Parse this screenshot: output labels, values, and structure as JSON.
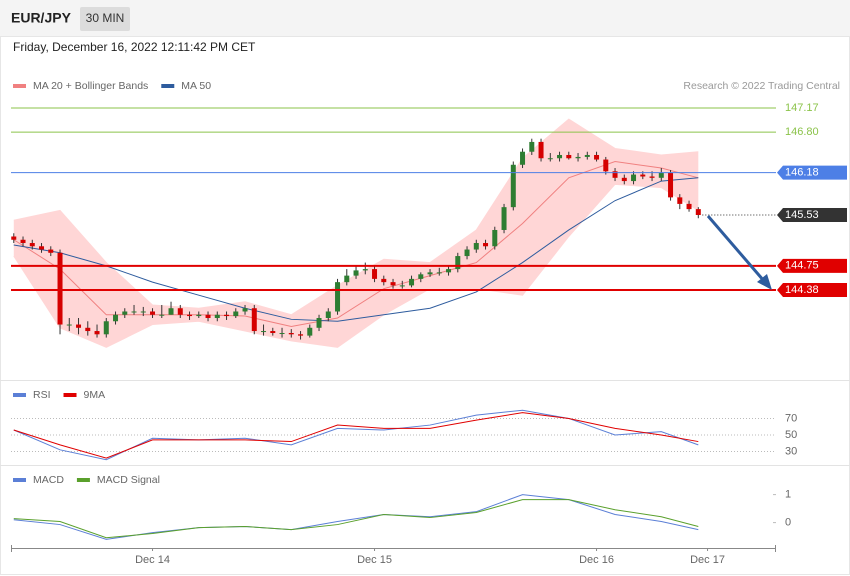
{
  "header": {
    "symbol": "EUR/JPY",
    "interval": "30 MIN",
    "timestamp": "Friday, December 16, 2022 12:11:42 PM CET"
  },
  "chart_data": [
    {
      "type": "candlestick",
      "credit": "Research © 2022 Trading Central",
      "legend": "top-left",
      "up_color": "#2e7d32",
      "down_color": "#d50000",
      "xlim": [
        -0.3,
        82.4
      ],
      "ylim": [
        143.03,
        147.83
      ],
      "x": [
        0,
        1,
        2,
        3,
        4,
        5,
        6,
        7,
        8,
        9,
        10,
        11,
        12,
        13,
        14,
        15,
        16,
        17,
        18,
        19,
        20,
        21,
        22,
        23,
        24,
        25,
        26,
        27,
        28,
        29,
        30,
        31,
        32,
        33,
        34,
        35,
        36,
        37,
        38,
        39,
        40,
        41,
        42,
        43,
        44,
        45,
        46,
        47,
        48,
        49,
        50,
        51,
        52,
        53,
        54,
        55,
        56,
        57,
        58,
        59,
        60,
        61,
        62,
        63,
        64,
        65,
        66,
        67,
        68,
        69,
        70,
        71,
        72,
        73,
        74
      ],
      "open": [
        145.2,
        145.15,
        145.1,
        145.05,
        145.0,
        144.95,
        143.85,
        143.85,
        143.8,
        143.75,
        143.7,
        143.9,
        144.0,
        144.05,
        144.05,
        144.05,
        144.0,
        144.0,
        144.1,
        144.0,
        143.98,
        144.0,
        143.95,
        144.0,
        143.98,
        144.05,
        144.1,
        143.75,
        143.75,
        143.72,
        143.72,
        143.7,
        143.68,
        143.8,
        143.95,
        144.05,
        144.5,
        144.6,
        144.68,
        144.7,
        144.55,
        144.5,
        144.45,
        144.45,
        144.55,
        144.62,
        144.65,
        144.65,
        144.7,
        144.9,
        145.0,
        145.1,
        145.05,
        145.3,
        145.65,
        146.3,
        146.5,
        146.65,
        146.4,
        146.4,
        146.45,
        146.4,
        146.42,
        146.45,
        146.38,
        146.2,
        146.1,
        146.05,
        146.15,
        146.12,
        146.1,
        146.18,
        145.8,
        145.7,
        145.62
      ],
      "high": [
        145.25,
        145.2,
        145.15,
        145.1,
        145.05,
        145.0,
        143.95,
        143.95,
        143.9,
        143.85,
        143.95,
        144.05,
        144.1,
        144.15,
        144.12,
        144.1,
        144.15,
        144.2,
        144.15,
        144.05,
        144.05,
        144.05,
        144.05,
        144.05,
        144.1,
        144.15,
        144.15,
        143.85,
        143.8,
        143.8,
        143.78,
        143.75,
        143.85,
        144.0,
        144.1,
        144.55,
        144.7,
        144.75,
        144.8,
        144.75,
        144.6,
        144.55,
        144.52,
        144.6,
        144.65,
        144.7,
        144.72,
        144.75,
        144.95,
        145.05,
        145.15,
        145.15,
        145.35,
        145.7,
        146.35,
        146.55,
        146.7,
        146.7,
        146.48,
        146.5,
        146.5,
        146.48,
        146.5,
        146.5,
        146.42,
        146.25,
        146.15,
        146.2,
        146.2,
        146.2,
        146.25,
        146.22,
        145.85,
        145.75,
        145.65
      ],
      "low": [
        145.1,
        145.05,
        145.0,
        144.95,
        144.9,
        143.7,
        143.75,
        143.7,
        143.68,
        143.65,
        143.65,
        143.85,
        143.95,
        144.0,
        143.98,
        143.95,
        143.95,
        144.0,
        143.95,
        143.92,
        143.95,
        143.9,
        143.9,
        143.92,
        143.95,
        144.0,
        143.7,
        143.68,
        143.68,
        143.65,
        143.65,
        143.62,
        143.65,
        143.75,
        143.9,
        144.0,
        144.45,
        144.55,
        144.62,
        144.5,
        144.45,
        144.4,
        144.4,
        144.42,
        144.5,
        144.58,
        144.6,
        144.6,
        144.65,
        144.85,
        144.95,
        145.0,
        145.0,
        145.25,
        145.6,
        146.25,
        146.45,
        146.35,
        146.35,
        146.35,
        146.38,
        146.35,
        146.38,
        146.35,
        146.15,
        146.05,
        146.0,
        146.0,
        146.08,
        146.05,
        146.05,
        145.75,
        145.62,
        145.58,
        145.48
      ],
      "close": [
        145.15,
        145.1,
        145.05,
        145.0,
        144.95,
        143.85,
        143.85,
        143.8,
        143.75,
        143.7,
        143.9,
        144.0,
        144.05,
        144.05,
        144.05,
        144.0,
        144.0,
        144.1,
        144.0,
        143.98,
        144.0,
        143.95,
        144.0,
        143.98,
        144.05,
        144.1,
        143.75,
        143.75,
        143.72,
        143.72,
        143.7,
        143.68,
        143.8,
        143.95,
        144.05,
        144.5,
        144.6,
        144.68,
        144.7,
        144.55,
        144.5,
        144.45,
        144.45,
        144.55,
        144.62,
        144.65,
        144.65,
        144.7,
        144.9,
        145.0,
        145.1,
        145.05,
        145.3,
        145.65,
        146.3,
        146.5,
        146.65,
        146.4,
        146.4,
        146.45,
        146.4,
        146.42,
        146.45,
        146.38,
        146.2,
        146.1,
        146.05,
        146.15,
        146.12,
        146.1,
        146.18,
        145.8,
        145.7,
        145.62,
        145.53
      ],
      "series": [
        {
          "name": "MA 20 + Bollinger Bands",
          "color": "#f08080",
          "band_color": "#ffd6d6",
          "x": [
            0,
            5,
            10,
            15,
            20,
            25,
            30,
            35,
            40,
            45,
            50,
            55,
            60,
            65,
            70,
            74
          ],
          "values": [
            145.15,
            144.7,
            144.0,
            144.0,
            144.0,
            143.98,
            143.82,
            143.95,
            144.4,
            144.6,
            144.8,
            145.4,
            146.1,
            146.35,
            146.25,
            146.1
          ],
          "upper": [
            145.45,
            145.6,
            144.8,
            144.15,
            144.1,
            144.2,
            144.0,
            144.45,
            144.85,
            144.8,
            145.3,
            146.4,
            147.0,
            146.55,
            146.45,
            146.5
          ],
          "lower": [
            144.9,
            143.8,
            143.5,
            143.85,
            143.9,
            143.75,
            143.6,
            143.5,
            144.0,
            144.4,
            144.4,
            144.3,
            145.2,
            146.0,
            145.95,
            145.6
          ]
        },
        {
          "name": "MA 50",
          "color": "#2e5c9e",
          "x": [
            0,
            5,
            10,
            15,
            20,
            25,
            30,
            35,
            40,
            45,
            50,
            55,
            60,
            65,
            70,
            74
          ],
          "values": [
            145.07,
            144.95,
            144.75,
            144.5,
            144.3,
            144.1,
            143.93,
            143.9,
            144.0,
            144.1,
            144.35,
            144.8,
            145.3,
            145.75,
            146.05,
            146.1
          ]
        }
      ],
      "levels": [
        {
          "value": 147.17,
          "color": "#8bc34a",
          "style": "line",
          "box": false
        },
        {
          "value": 146.8,
          "label": "146.80",
          "color": "#8bc34a",
          "style": "line",
          "box": false
        },
        {
          "value": 146.18,
          "color": "#4d7fe6",
          "style": "line",
          "box": true
        },
        {
          "value": 145.53,
          "color": "#333333",
          "style": "dotted",
          "box": true
        },
        {
          "value": 144.75,
          "color": "#e00000",
          "style": "thick",
          "box": true
        },
        {
          "value": 144.38,
          "color": "#e00000",
          "style": "thick",
          "box": true
        }
      ]
    },
    {
      "type": "line",
      "legend": "top-left",
      "grid": true,
      "xlim": [
        -0.3,
        82.4
      ],
      "ylim": [
        16,
        113
      ],
      "yticks": [
        70,
        50,
        30
      ],
      "series": [
        {
          "name": "RSI",
          "color": "#5b7fd6",
          "x": [
            0,
            5,
            10,
            15,
            20,
            25,
            30,
            35,
            40,
            45,
            50,
            55,
            60,
            65,
            70,
            74
          ],
          "values": [
            56,
            32,
            20,
            46,
            44,
            46,
            38,
            58,
            56,
            62,
            74,
            80,
            70,
            50,
            54,
            38
          ]
        },
        {
          "name": "9MA",
          "color": "#e00000",
          "x": [
            0,
            5,
            10,
            15,
            20,
            25,
            30,
            35,
            40,
            45,
            50,
            55,
            60,
            65,
            70,
            74
          ],
          "values": [
            56,
            38,
            22,
            44,
            44,
            44,
            42,
            62,
            58,
            58,
            68,
            77,
            70,
            58,
            50,
            42
          ]
        }
      ]
    },
    {
      "type": "line",
      "legend": "top-left",
      "grid": false,
      "xlim": [
        -0.3,
        82.4
      ],
      "ylim": [
        -0.8,
        1.95
      ],
      "yticks": [
        1,
        0
      ],
      "xticks": [
        {
          "value": 15,
          "label": "Dec 14"
        },
        {
          "value": 39,
          "label": "Dec 15"
        },
        {
          "value": 63,
          "label": "Dec 16"
        },
        {
          "value": 75,
          "label": "Dec 17"
        }
      ],
      "series": [
        {
          "name": "MACD",
          "color": "#5b7fd6",
          "x": [
            0,
            5,
            10,
            15,
            20,
            25,
            30,
            35,
            40,
            45,
            50,
            55,
            60,
            65,
            70,
            74
          ],
          "values": [
            0.1,
            -0.07,
            -0.6,
            -0.36,
            -0.18,
            -0.14,
            -0.25,
            0.04,
            0.29,
            0.21,
            0.39,
            1.0,
            0.82,
            0.29,
            0.04,
            -0.25
          ]
        },
        {
          "name": "MACD Signal",
          "color": "#5aa02c",
          "x": [
            0,
            5,
            10,
            15,
            20,
            25,
            30,
            35,
            40,
            45,
            50,
            55,
            60,
            65,
            70,
            74
          ],
          "values": [
            0.14,
            0.04,
            -0.54,
            -0.39,
            -0.18,
            -0.14,
            -0.25,
            -0.07,
            0.29,
            0.18,
            0.36,
            0.82,
            0.82,
            0.46,
            0.21,
            -0.14
          ]
        }
      ]
    }
  ]
}
